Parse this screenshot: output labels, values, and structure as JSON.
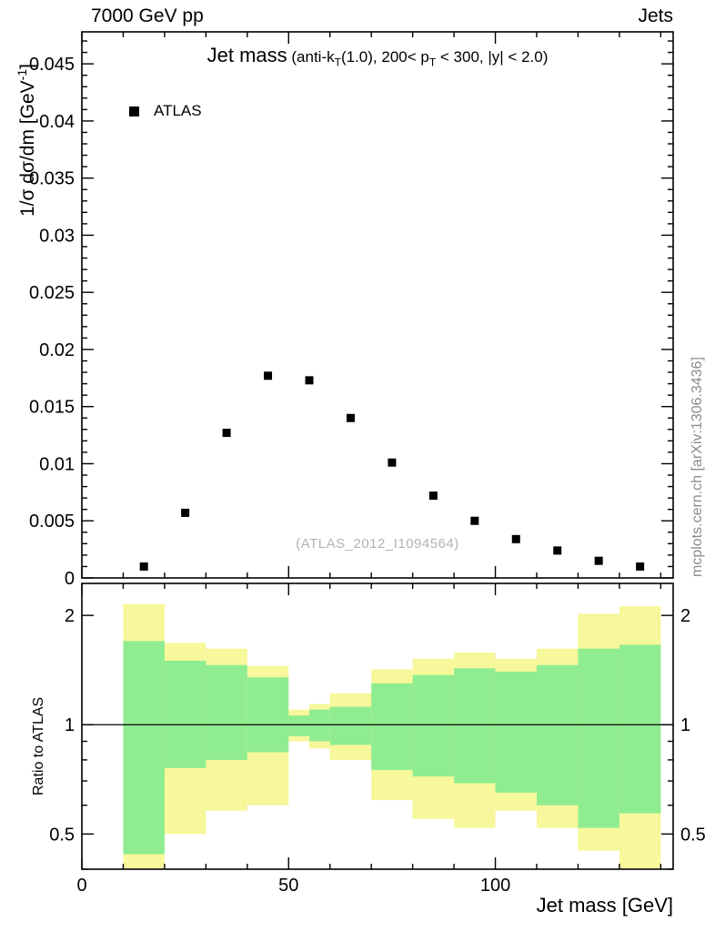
{
  "header": {
    "left": "7000 GeV pp",
    "right": "Jets"
  },
  "top_panel": {
    "ylabel": {
      "pre": "1/σ dσ/dm [GeV",
      "sup": "-1",
      "post": "]"
    },
    "title": {
      "main": "Jet mass",
      "sub1": " (anti-k",
      "sub1_sub": "T",
      "sub2": "(1.0), 200< p",
      "sub2_sub": "T",
      "sub3": " < 300, |y| < 2.0)"
    },
    "legend_label": "ATLAS",
    "watermark": "(ATLAS_2012_I1094564)"
  },
  "ratio_panel": {
    "ylabel": "Ratio to ATLAS"
  },
  "xlabel": "Jet mass [GeV]",
  "side_note": "mcplots.cern.ch [arXiv:1306.3436]",
  "chart_data": [
    {
      "type": "scatter",
      "panel": "main",
      "title": "Jet mass (anti-kT(1.0), 200< pT < 300, |y| < 2.0)",
      "xlim": [
        0,
        143
      ],
      "ylim": [
        0,
        0.0478
      ],
      "xticks": [
        0,
        50,
        100
      ],
      "xtick_labels": [
        "0",
        "50",
        "100"
      ],
      "x_minor_step": 10,
      "yticks": [
        0,
        0.005,
        0.01,
        0.015,
        0.02,
        0.025,
        0.03,
        0.035,
        0.04,
        0.045
      ],
      "ytick_labels": [
        "0",
        "0.005",
        "0.01",
        "0.015",
        "0.02",
        "0.025",
        "0.03",
        "0.035",
        "0.04",
        "0.045"
      ],
      "y_minor_step": 0.001,
      "grid": false,
      "legend_position": "top-left",
      "series": [
        {
          "name": "ATLAS",
          "marker": "filled-square",
          "color": "#000000",
          "x": [
            15,
            25,
            35,
            45,
            55,
            65,
            75,
            85,
            95,
            105,
            115,
            125,
            135
          ],
          "y": [
            0.001,
            0.0057,
            0.0127,
            0.0177,
            0.0173,
            0.014,
            0.0101,
            0.0072,
            0.005,
            0.0034,
            0.0024,
            0.0015,
            0.001
          ]
        }
      ]
    },
    {
      "type": "band",
      "panel": "ratio",
      "ylabel": "Ratio to ATLAS",
      "yscale": "log",
      "xlim": [
        0,
        143
      ],
      "ylim": [
        0.4,
        2.45
      ],
      "yticks": [
        0.5,
        1,
        2
      ],
      "ytick_labels": [
        "0.5",
        "1",
        "2"
      ],
      "yticks_minor": [
        0.4,
        0.6,
        0.7,
        0.8,
        0.9
      ],
      "reference_line": 1,
      "bin_edges": [
        10,
        20,
        30,
        40,
        50,
        55,
        60,
        70,
        80,
        90,
        100,
        110,
        120,
        130,
        140
      ],
      "bands": [
        {
          "name": "outer-uncertainty",
          "color": "#f7f79b",
          "lo": [
            0.38,
            0.5,
            0.58,
            0.6,
            0.9,
            0.86,
            0.8,
            0.62,
            0.55,
            0.52,
            0.58,
            0.52,
            0.45,
            0.4
          ],
          "hi": [
            2.15,
            1.68,
            1.62,
            1.45,
            1.1,
            1.14,
            1.22,
            1.42,
            1.52,
            1.58,
            1.52,
            1.62,
            2.02,
            2.12
          ]
        },
        {
          "name": "inner-uncertainty",
          "color": "#90ec90",
          "lo": [
            0.44,
            0.76,
            0.8,
            0.84,
            0.93,
            0.9,
            0.88,
            0.75,
            0.72,
            0.69,
            0.65,
            0.6,
            0.52,
            0.57
          ],
          "hi": [
            1.7,
            1.5,
            1.46,
            1.35,
            1.06,
            1.1,
            1.12,
            1.3,
            1.37,
            1.43,
            1.4,
            1.46,
            1.62,
            1.66
          ]
        }
      ]
    }
  ]
}
